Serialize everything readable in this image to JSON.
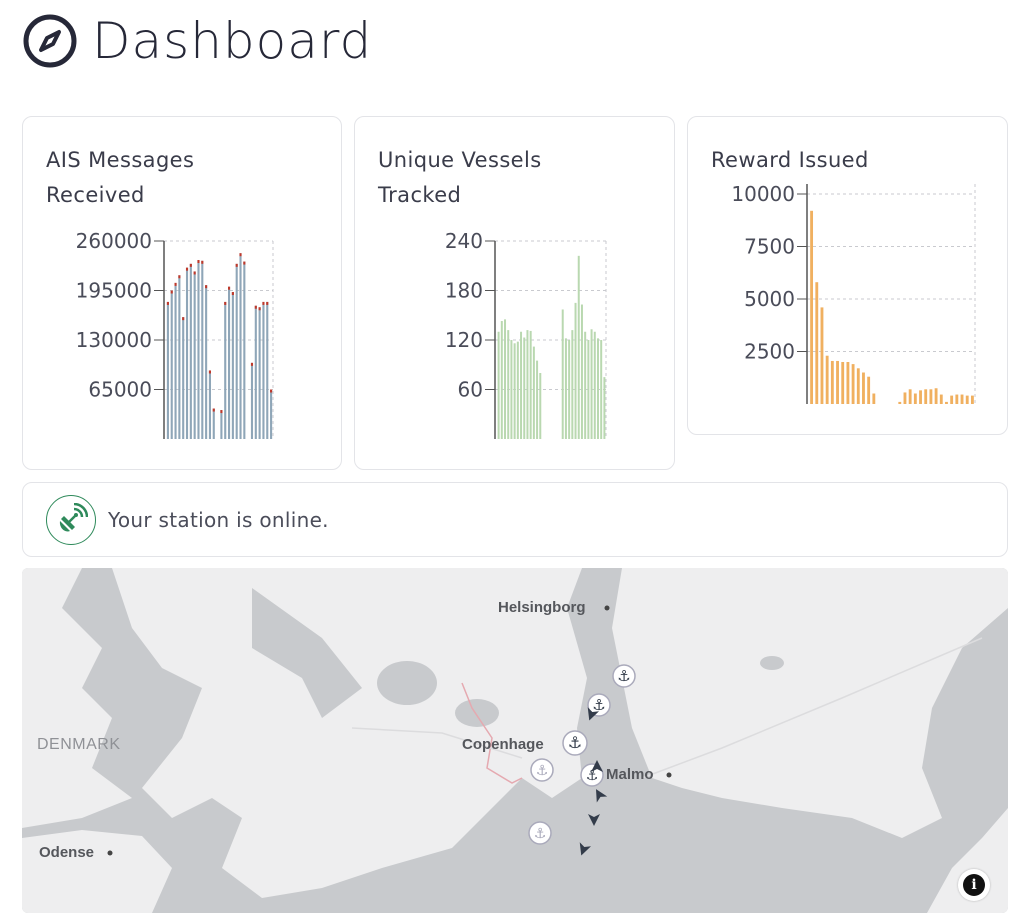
{
  "header": {
    "title": "Dashboard",
    "icon": "compass-icon"
  },
  "cards": {
    "ais": {
      "title_line1": "AIS Messages",
      "title_line2": "Received"
    },
    "vessels": {
      "title_line1": "Unique Vessels",
      "title_line2": "Tracked"
    },
    "reward": {
      "title": "Reward Issued"
    }
  },
  "chart_data": [
    {
      "type": "bar",
      "title": "AIS Messages Received",
      "ylim": [
        0,
        260000
      ],
      "yticks": [
        "260000",
        "195000",
        "130000",
        "65000"
      ],
      "ytick_values": [
        260000,
        195000,
        130000,
        65000
      ],
      "grid": true,
      "colors": {
        "bar": "#8fa6b8",
        "cap": "#c0392b"
      },
      "values": [
        180000,
        195000,
        205000,
        215000,
        160000,
        225000,
        230000,
        220000,
        235000,
        234000,
        202000,
        90000,
        40000,
        0,
        38000,
        180000,
        200000,
        193000,
        230000,
        244000,
        233000,
        0,
        100000,
        175000,
        173000,
        180000,
        180000,
        65000
      ]
    },
    {
      "type": "bar",
      "title": "Unique Vessels Tracked",
      "ylim": [
        0,
        240
      ],
      "yticks": [
        "240",
        "180",
        "120",
        "60"
      ],
      "ytick_values": [
        240,
        180,
        120,
        60
      ],
      "grid": true,
      "colors": {
        "bar": "#b9d8b0"
      },
      "values": [
        130,
        143,
        145,
        132,
        120,
        116,
        118,
        130,
        123,
        132,
        131,
        112,
        95,
        80,
        0,
        0,
        0,
        0,
        0,
        0,
        157,
        122,
        120,
        132,
        165,
        222,
        163,
        130,
        120,
        133,
        130,
        122,
        120,
        75
      ]
    },
    {
      "type": "bar",
      "title": "Reward Issued",
      "ylim": [
        0,
        10000
      ],
      "yticks": [
        "10000",
        "7500",
        "5000",
        "2500"
      ],
      "ytick_values": [
        10000,
        7500,
        5000,
        2500
      ],
      "grid": true,
      "colors": {
        "bar": "#f0b060"
      },
      "values": [
        9200,
        5800,
        4600,
        2300,
        2050,
        2050,
        2000,
        2000,
        1900,
        1700,
        1500,
        1300,
        500,
        0,
        0,
        0,
        0,
        100,
        550,
        700,
        500,
        650,
        700,
        700,
        750,
        450,
        100,
        400,
        450,
        450,
        400,
        400
      ]
    }
  ],
  "status": {
    "text": "Your station is online.",
    "icon": "satellite-dish-icon",
    "color": "#2f8a5b"
  },
  "map": {
    "labels": {
      "helsingborg": "Helsingborg",
      "copenhagen": "Copenhage",
      "malmo": "Malmo",
      "odense": "Odense",
      "denmark": "DENMARK"
    },
    "info_icon": "info-icon"
  }
}
